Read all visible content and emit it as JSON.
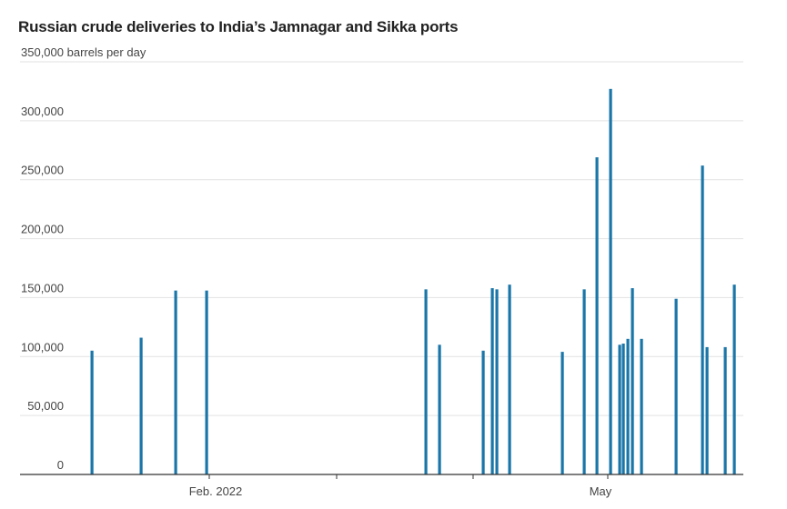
{
  "chart_data": {
    "type": "bar",
    "title": "Russian crude deliveries to India’s Jamnagar and Sikka ports",
    "ylabel_unit": "barrels per day",
    "ylim": [
      0,
      350000
    ],
    "y_ticks": [
      0,
      50000,
      100000,
      150000,
      200000,
      250000,
      300000,
      350000
    ],
    "y_tick_labels": [
      "0",
      "50,000",
      "100,000",
      "150,000",
      "200,000",
      "250,000",
      "300,000",
      "350,000 barrels per day"
    ],
    "x_tick_labels": [
      "Feb. 2022",
      "May"
    ],
    "grid": true,
    "legend": "none",
    "bar_color": "#1a76a8",
    "values": [
      105000,
      116000,
      156000,
      156000,
      157000,
      110000,
      105000,
      158000,
      157000,
      161000,
      104000,
      157000,
      269000,
      327000,
      110000,
      111000,
      115000,
      158000,
      115000,
      149000,
      262000,
      108000,
      108000,
      161000
    ]
  }
}
